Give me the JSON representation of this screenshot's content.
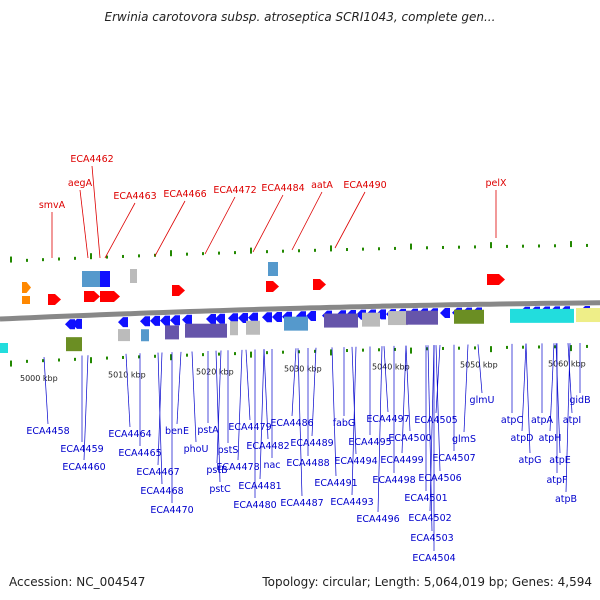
{
  "title": "Erwinia carotovora subsp. atroseptica SCRI1043, complete gen...",
  "footer": {
    "accession": "Accession: NC_004547",
    "topology": "Topology: circular; Length: 5,064,019 bp; Genes: 4,594"
  },
  "colors": {
    "upper_label": "#dd0000",
    "lower_label": "#0000cc",
    "tick": "#228800",
    "backbone": "#888888",
    "blue_gene": "#1010ff",
    "red_gene": "#ff0000",
    "orange_gene": "#ff8800",
    "olive_gene": "#6b8e23",
    "cyan_gene": "#22dddd",
    "purple_gene": "#6655aa",
    "gray_gene": "#bbbbbb",
    "steel_gene": "#5599cc",
    "yellow_gene": "#eeee88"
  },
  "scale_labels": [
    "5000 kbp",
    "5010 kbp",
    "5020 kbp",
    "5030 kbp",
    "5040 kbp",
    "5050 kbp",
    "5060 kbp"
  ],
  "upper_genes": [
    "smvA",
    "aegA",
    "ECA4462",
    "ECA4463",
    "ECA4466",
    "ECA4472",
    "ECA4484",
    "aatA",
    "ECA4490",
    "pelX"
  ],
  "lower_genes": [
    "ECA4458",
    "ECA4459",
    "ECA4460",
    "ECA4464",
    "ECA4465",
    "ECA4467",
    "ECA4468",
    "ECA4470",
    "benE",
    "phoU",
    "pstA",
    "pstB",
    "pstC",
    "pstS",
    "ECA4478",
    "ECA4479",
    "ECA4480",
    "ECA4481",
    "ECA4482",
    "nac",
    "ECA4486",
    "ECA4487",
    "ECA4488",
    "ECA4489",
    "ECA4491",
    "fabG",
    "ECA4493",
    "ECA4494",
    "ECA4495",
    "ECA4496",
    "ECA4497",
    "ECA4498",
    "ECA4499",
    "ECA4500",
    "ECA4501",
    "ECA4502",
    "ECA4503",
    "ECA4504",
    "ECA4505",
    "ECA4506",
    "ECA4507",
    "glmS",
    "glmU",
    "atpC",
    "atpD",
    "atpG",
    "atpA",
    "atpH",
    "atpE",
    "atpF",
    "atpB",
    "atpI",
    "gidB"
  ]
}
